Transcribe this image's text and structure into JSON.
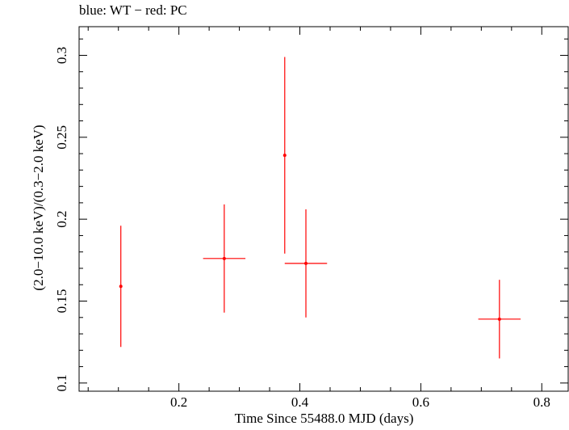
{
  "chart_data": {
    "type": "scatter",
    "title": "blue: WT − red: PC",
    "xlabel": "Time Since 55488.0 MJD (days)",
    "ylabel": "(2.0−10.0 keV)/(0.3−2.0 keV)",
    "xlim": [
      0.035,
      0.845
    ],
    "ylim": [
      0.095,
      0.3175
    ],
    "xticks": [
      0.2,
      0.4,
      0.6,
      0.8
    ],
    "xtick_labels": [
      "0.2",
      "0.4",
      "0.6",
      "0.8"
    ],
    "yticks": [
      0.1,
      0.15,
      0.2,
      0.25,
      0.3
    ],
    "ytick_labels": [
      "0.1",
      "0.15",
      "0.2",
      "0.25",
      "0.3"
    ],
    "grid": false,
    "series": [
      {
        "color": "#ff0000",
        "points": [
          {
            "x": 0.104,
            "y": 0.159,
            "xerr": [
              0.0,
              0.0
            ],
            "yerr": [
              0.037,
              0.037
            ]
          },
          {
            "x": 0.275,
            "y": 0.176,
            "xerr": [
              0.035,
              0.035
            ],
            "yerr": [
              0.033,
              0.033
            ]
          },
          {
            "x": 0.375,
            "y": 0.239,
            "xerr": [
              0.0,
              0.0
            ],
            "yerr": [
              0.06,
              0.06
            ]
          },
          {
            "x": 0.41,
            "y": 0.173,
            "xerr": [
              0.035,
              0.035
            ],
            "yerr": [
              0.033,
              0.033
            ]
          },
          {
            "x": 0.73,
            "y": 0.139,
            "xerr": [
              0.035,
              0.035
            ],
            "yerr": [
              0.024,
              0.024
            ]
          }
        ]
      }
    ]
  }
}
